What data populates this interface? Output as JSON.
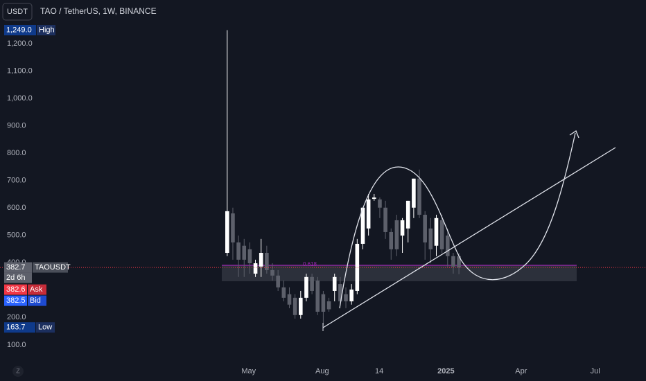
{
  "chart_data": {
    "type": "candlestick",
    "title": "TAO / TetherUS, 1W, BINANCE",
    "currency": "USDT",
    "series_name": "TAOUSDT",
    "up_color": "#ffffff",
    "down_color": "#5d606b",
    "open": [
      436,
      580,
      474,
      462,
      449,
      360,
      386,
      436,
      373,
      353,
      310,
      285,
      272,
      209,
      272,
      348,
      335,
      285,
      259,
      297,
      322,
      285,
      259,
      297,
      469,
      525,
      633,
      631,
      601,
      512,
      555,
      499,
      525,
      601,
      707,
      575,
      525,
      462,
      555,
      499,
      424,
      424
    ],
    "high": [
      1249,
      601,
      499,
      487,
      474,
      411,
      487,
      462,
      398,
      373,
      335,
      310,
      285,
      297,
      360,
      360,
      348,
      297,
      272,
      360,
      348,
      310,
      322,
      487,
      601,
      651,
      651,
      638,
      626,
      525,
      575,
      563,
      626,
      707,
      740,
      588,
      563,
      575,
      575,
      525,
      436,
      436
    ],
    "low": [
      424,
      411,
      348,
      348,
      360,
      348,
      348,
      360,
      335,
      297,
      259,
      234,
      196,
      196,
      259,
      285,
      209,
      171,
      221,
      259,
      247,
      234,
      247,
      285,
      449,
      499,
      626,
      563,
      487,
      411,
      424,
      436,
      474,
      563,
      563,
      411,
      398,
      424,
      436,
      386,
      360,
      358
    ],
    "close": [
      588,
      474,
      411,
      411,
      398,
      398,
      436,
      373,
      353,
      310,
      272,
      247,
      209,
      272,
      348,
      297,
      221,
      221,
      230,
      348,
      259,
      259,
      302,
      469,
      601,
      631,
      638,
      601,
      512,
      449,
      449,
      555,
      626,
      707,
      575,
      474,
      449,
      563,
      449,
      424,
      386,
      382.7
    ],
    "xlim": [
      -40.2,
      74.1
    ],
    "xticks": [
      {
        "value": 3.8,
        "label": "May"
      },
      {
        "value": 16.8,
        "label": "Aug"
      },
      {
        "value": 26.9,
        "label": "14"
      },
      {
        "value": 38.7,
        "label": "2025"
      },
      {
        "value": 52,
        "label": "Apr"
      },
      {
        "value": 65.1,
        "label": "Jul"
      }
    ],
    "ylim": [
      39,
      1359
    ],
    "yticks": [
      {
        "value": 100,
        "label": "100.0"
      },
      {
        "value": 200,
        "label": "200.0"
      },
      {
        "value": 400,
        "label": "400.0"
      },
      {
        "value": 500,
        "label": "500.0"
      },
      {
        "value": 600,
        "label": "600.0"
      },
      {
        "value": 700,
        "label": "700.0"
      },
      {
        "value": 800,
        "label": "800.0"
      },
      {
        "value": 900,
        "label": "900.0"
      },
      {
        "value": 1000,
        "label": "1,000.0"
      },
      {
        "value": 1100,
        "label": "1,100.0"
      },
      {
        "value": 1200,
        "label": "1,200.0"
      }
    ],
    "high_tag": {
      "value": 1249,
      "label": "1,249.0",
      "text": "High"
    },
    "low_tag": {
      "value": 163.7,
      "label": "163.7",
      "text": "Low"
    },
    "last_tag": {
      "value": 382.7,
      "label": "382.7",
      "text": "TAOUSDT",
      "countdown": "2d 6h"
    },
    "ask_tag": {
      "value": 382.6,
      "label": "382.6",
      "text": "Ask"
    },
    "bid_tag": {
      "value": 382.5,
      "label": "382.5",
      "text": "Bid"
    },
    "fib_level": 0.618,
    "reset_button": "Z"
  }
}
